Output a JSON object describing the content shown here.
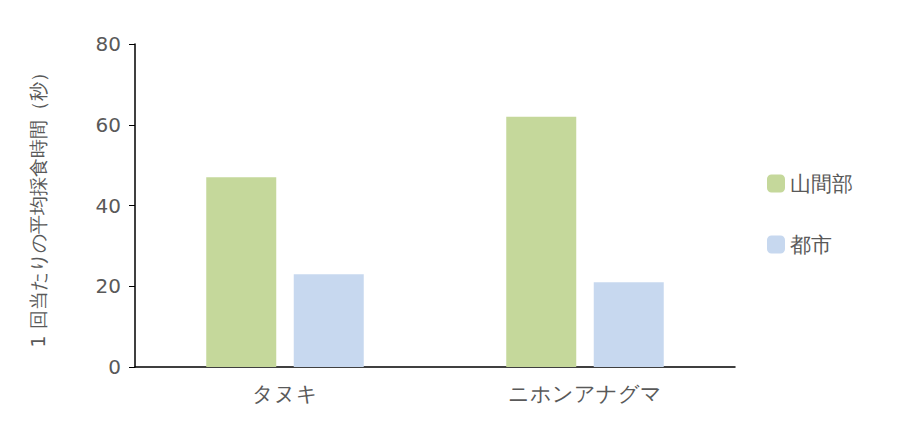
{
  "chart_data": {
    "type": "bar",
    "y_label": "1 回当たりの平均採食時間（秒）",
    "categories": [
      "タヌキ",
      "ニホンアナグマ"
    ],
    "series": [
      {
        "name": "山間部",
        "color": "#c5d89b",
        "values": [
          47,
          62
        ]
      },
      {
        "name": "都市",
        "color": "#c7d8ef",
        "values": [
          23,
          21
        ]
      }
    ],
    "ylim": [
      0,
      80
    ],
    "yticks": [
      0,
      20,
      40,
      60,
      80
    ],
    "grid": false,
    "legend": "right"
  }
}
